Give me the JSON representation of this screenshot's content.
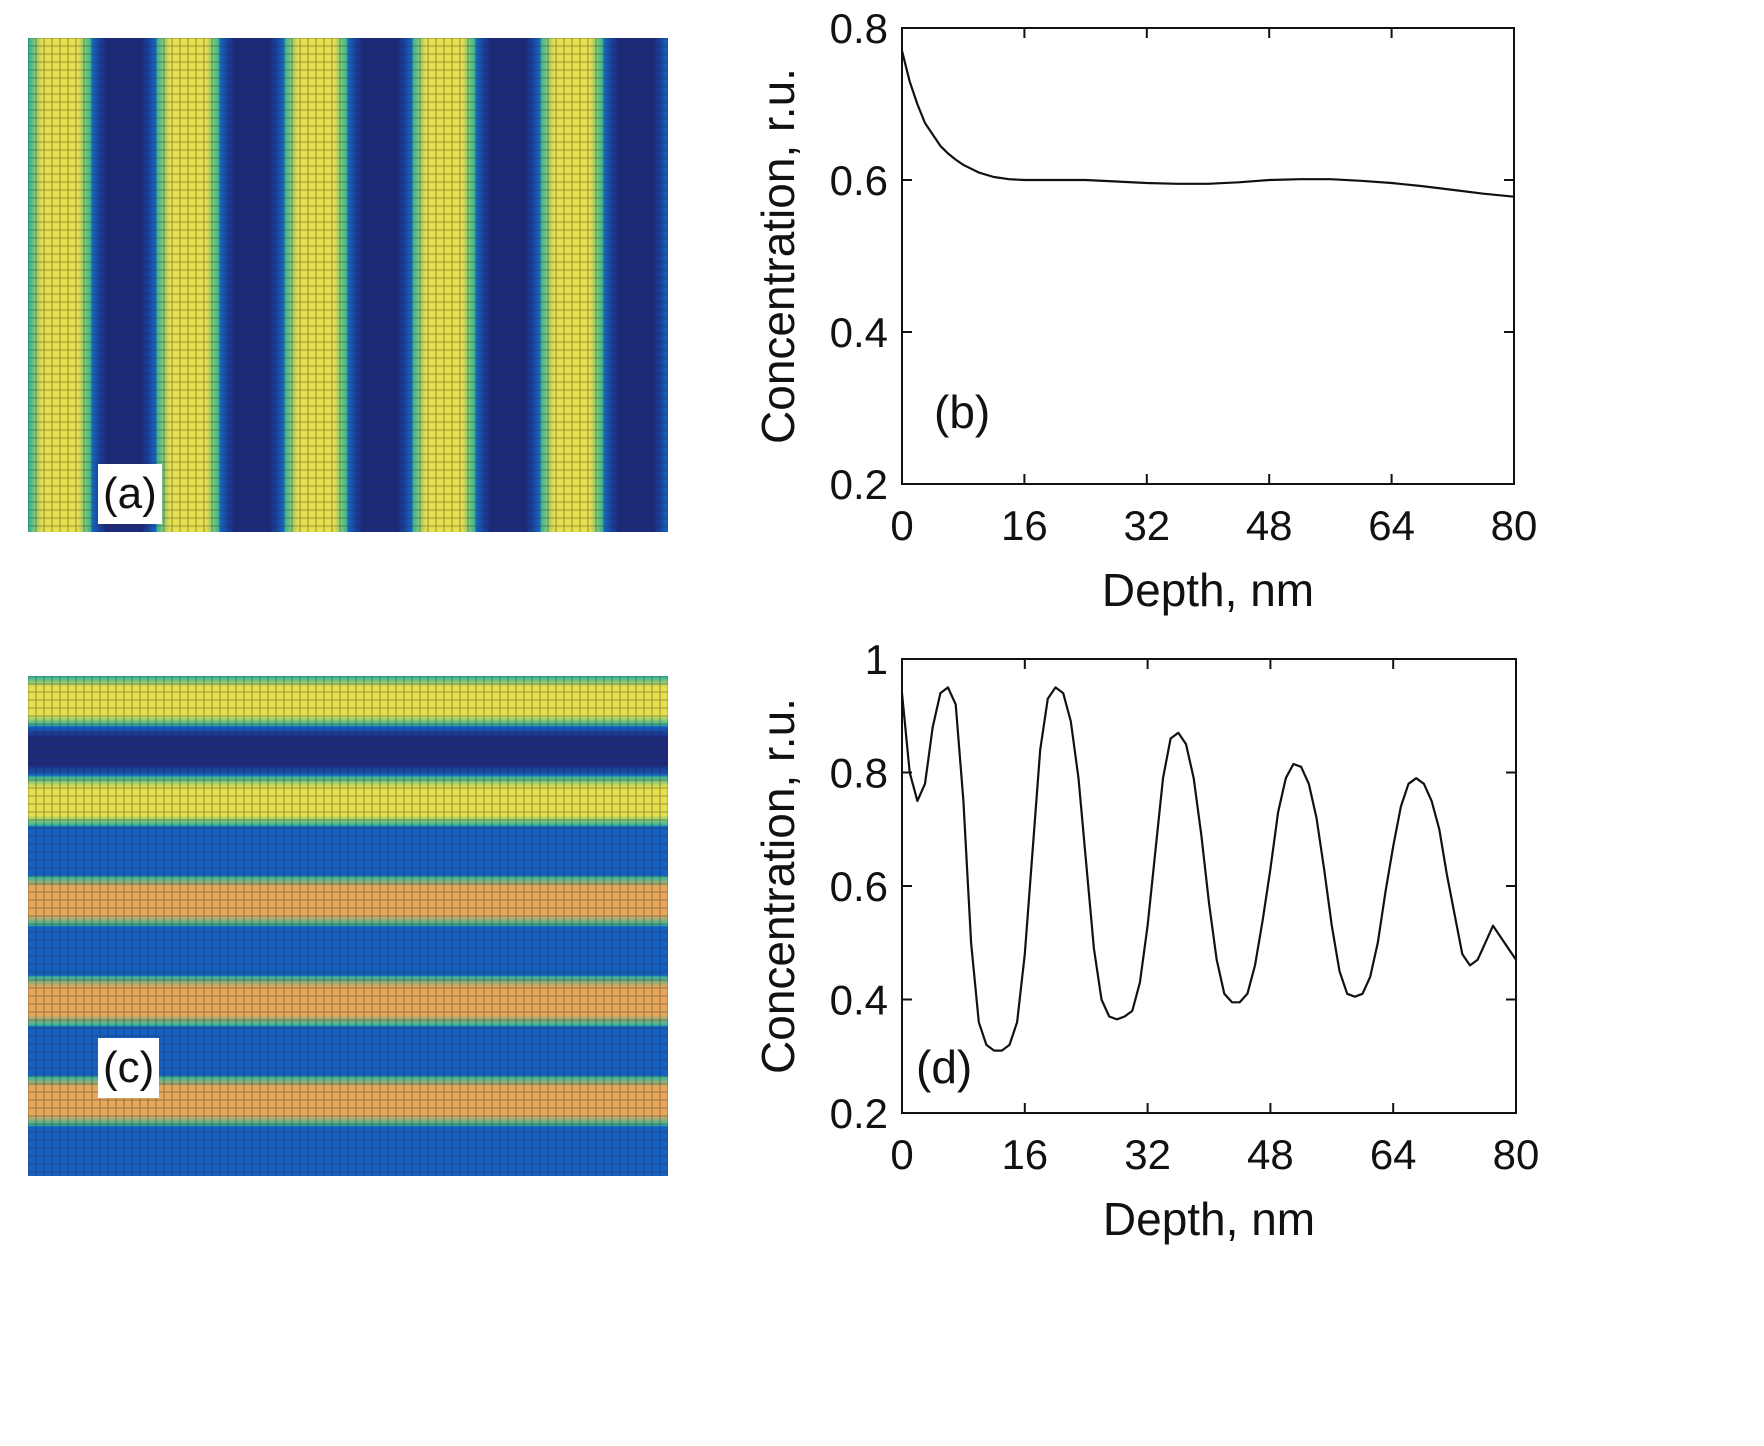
{
  "colors": {
    "yellow": "#e6e04a",
    "orange": "#e8a85a",
    "green": "#36b59a",
    "blue": "#1460c4",
    "navy": "#1c2a80",
    "gridline": "#2c2c2c",
    "curve": "#111111"
  },
  "maps": [
    {
      "label": "(a)",
      "orientation": "vertical-stripes",
      "stripe_pattern": [
        "yellow",
        "navy",
        "yellow",
        "navy",
        "yellow",
        "navy",
        "yellow",
        "navy",
        "yellow",
        "navy"
      ]
    },
    {
      "label": "(c)",
      "orientation": "horizontal-stripes",
      "stripe_pattern": [
        "yellow",
        "navy",
        "yellow",
        "blue",
        "orange",
        "blue",
        "orange",
        "blue",
        "orange",
        "blue"
      ]
    }
  ],
  "chart_data": [
    {
      "type": "line",
      "annotation": "(b)",
      "xlabel": "Depth, nm",
      "ylabel": "Concentration, r.u.",
      "xlim": [
        0,
        80
      ],
      "ylim": [
        0.2,
        0.8
      ],
      "xticks": [
        0,
        16,
        32,
        48,
        64,
        80
      ],
      "yticks": [
        0.2,
        0.4,
        0.6,
        0.8
      ],
      "ytick_labels": [
        "0.2",
        "0.4",
        "0.6",
        "0.8"
      ],
      "series": [
        {
          "name": "concentration",
          "x": [
            0,
            0.5,
            1,
            2,
            3,
            4,
            5,
            6,
            7,
            8,
            10,
            12,
            14,
            16,
            20,
            24,
            28,
            32,
            36,
            40,
            44,
            48,
            52,
            56,
            60,
            64,
            68,
            72,
            76,
            80
          ],
          "y": [
            0.77,
            0.75,
            0.73,
            0.7,
            0.675,
            0.66,
            0.645,
            0.635,
            0.627,
            0.62,
            0.61,
            0.604,
            0.601,
            0.6,
            0.6,
            0.6,
            0.598,
            0.596,
            0.595,
            0.595,
            0.597,
            0.6,
            0.601,
            0.601,
            0.599,
            0.596,
            0.592,
            0.587,
            0.582,
            0.578
          ]
        }
      ]
    },
    {
      "type": "line",
      "annotation": "(d)",
      "xlabel": "Depth, nm",
      "ylabel": "Concentration, r.u.",
      "xlim": [
        0,
        80
      ],
      "ylim": [
        0.2,
        1.0
      ],
      "xticks": [
        0,
        16,
        32,
        48,
        64,
        80
      ],
      "yticks": [
        0.2,
        0.4,
        0.6,
        0.8,
        1.0
      ],
      "ytick_labels": [
        "0.2",
        "0.4",
        "0.6",
        "0.8",
        "1"
      ],
      "series": [
        {
          "name": "concentration",
          "x": [
            0,
            1,
            2,
            3,
            4,
            5,
            6,
            7,
            8,
            9,
            10,
            11,
            12,
            13,
            14,
            15,
            16,
            17,
            18,
            19,
            20,
            21,
            22,
            23,
            24,
            25,
            26,
            27,
            28,
            29,
            30,
            31,
            32,
            33,
            34,
            35,
            36,
            37,
            38,
            39,
            40,
            41,
            42,
            43,
            44,
            45,
            46,
            47,
            48,
            49,
            50,
            51,
            52,
            53,
            54,
            55,
            56,
            57,
            58,
            59,
            60,
            61,
            62,
            63,
            64,
            65,
            66,
            67,
            68,
            69,
            70,
            71,
            72,
            73,
            74,
            75,
            76,
            77,
            78,
            79,
            80
          ],
          "y": [
            0.94,
            0.8,
            0.75,
            0.78,
            0.88,
            0.94,
            0.95,
            0.92,
            0.75,
            0.5,
            0.36,
            0.32,
            0.31,
            0.31,
            0.32,
            0.36,
            0.48,
            0.66,
            0.84,
            0.93,
            0.95,
            0.94,
            0.89,
            0.79,
            0.64,
            0.49,
            0.4,
            0.37,
            0.365,
            0.37,
            0.38,
            0.43,
            0.53,
            0.66,
            0.79,
            0.86,
            0.87,
            0.85,
            0.79,
            0.69,
            0.57,
            0.47,
            0.41,
            0.395,
            0.395,
            0.41,
            0.46,
            0.54,
            0.63,
            0.73,
            0.79,
            0.815,
            0.81,
            0.78,
            0.72,
            0.63,
            0.53,
            0.45,
            0.41,
            0.405,
            0.41,
            0.44,
            0.5,
            0.59,
            0.67,
            0.74,
            0.78,
            0.79,
            0.78,
            0.75,
            0.7,
            0.62,
            0.55,
            0.48,
            0.46,
            0.47,
            0.5,
            0.53,
            0.51,
            0.49,
            0.47
          ]
        }
      ]
    }
  ]
}
